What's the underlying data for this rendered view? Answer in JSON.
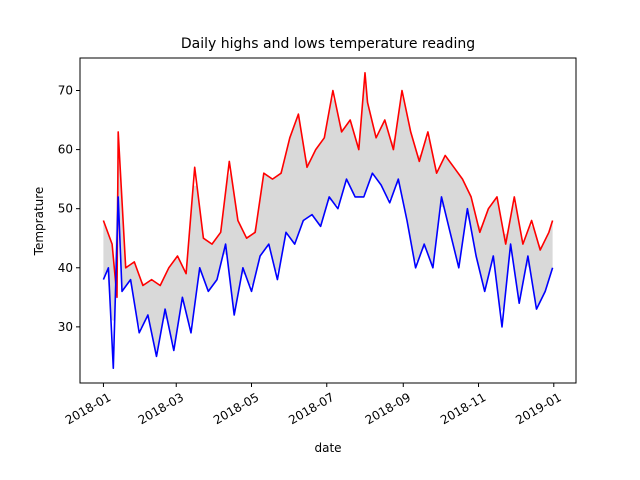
{
  "chart_data": {
    "type": "line",
    "title": "Daily highs and lows temperature reading",
    "xlabel": "date",
    "ylabel": "Temprature",
    "xlim": [
      "2017-12-13",
      "2019-01-19"
    ],
    "ylim": [
      20.5,
      75.5
    ],
    "x_ticks": [
      "2018-01",
      "2018-03",
      "2018-05",
      "2018-07",
      "2018-09",
      "2018-11",
      "2019-01"
    ],
    "x_tick_dates": [
      "2018-01-01",
      "2018-03-01",
      "2018-05-01",
      "2018-07-01",
      "2018-09-01",
      "2018-11-01",
      "2019-01-01"
    ],
    "y_ticks": [
      30,
      40,
      50,
      60,
      70
    ],
    "fill_between": {
      "color": "#d9d9d9"
    },
    "grid": false,
    "series": [
      {
        "color": "#ff0000",
        "x": [
          "2018-01-01",
          "2018-01-08",
          "2018-01-12",
          "2018-01-13",
          "2018-01-19",
          "2018-01-26",
          "2018-02-02",
          "2018-02-09",
          "2018-02-16",
          "2018-02-23",
          "2018-03-02",
          "2018-03-09",
          "2018-03-16",
          "2018-03-23",
          "2018-03-30",
          "2018-04-06",
          "2018-04-13",
          "2018-04-20",
          "2018-04-27",
          "2018-05-04",
          "2018-05-11",
          "2018-05-18",
          "2018-05-25",
          "2018-06-01",
          "2018-06-08",
          "2018-06-15",
          "2018-06-22",
          "2018-06-29",
          "2018-07-06",
          "2018-07-13",
          "2018-07-20",
          "2018-07-27",
          "2018-08-01",
          "2018-08-03",
          "2018-08-10",
          "2018-08-17",
          "2018-08-24",
          "2018-08-31",
          "2018-09-07",
          "2018-09-14",
          "2018-09-21",
          "2018-09-28",
          "2018-10-05",
          "2018-10-12",
          "2018-10-19",
          "2018-10-26",
          "2018-11-02",
          "2018-11-09",
          "2018-11-16",
          "2018-11-23",
          "2018-11-30",
          "2018-12-07",
          "2018-12-14",
          "2018-12-21",
          "2018-12-28",
          "2018-12-31"
        ],
        "values": [
          48,
          44,
          35,
          63,
          40,
          41,
          37,
          38,
          37,
          40,
          42,
          39,
          57,
          45,
          44,
          46,
          58,
          48,
          45,
          46,
          56,
          55,
          56,
          62,
          66,
          57,
          60,
          62,
          70,
          63,
          65,
          60,
          73,
          68,
          62,
          65,
          60,
          70,
          63,
          58,
          63,
          56,
          59,
          57,
          55,
          52,
          46,
          50,
          52,
          44,
          52,
          44,
          48,
          43,
          46,
          48
        ]
      },
      {
        "color": "#0000ff",
        "x": [
          "2018-01-01",
          "2018-01-05",
          "2018-01-09",
          "2018-01-13",
          "2018-01-16",
          "2018-01-23",
          "2018-01-30",
          "2018-02-06",
          "2018-02-13",
          "2018-02-20",
          "2018-02-27",
          "2018-03-06",
          "2018-03-13",
          "2018-03-20",
          "2018-03-27",
          "2018-04-03",
          "2018-04-10",
          "2018-04-17",
          "2018-04-24",
          "2018-05-01",
          "2018-05-08",
          "2018-05-15",
          "2018-05-22",
          "2018-05-29",
          "2018-06-05",
          "2018-06-12",
          "2018-06-19",
          "2018-06-26",
          "2018-07-03",
          "2018-07-10",
          "2018-07-17",
          "2018-07-24",
          "2018-07-31",
          "2018-08-07",
          "2018-08-14",
          "2018-08-21",
          "2018-08-28",
          "2018-09-04",
          "2018-09-11",
          "2018-09-18",
          "2018-09-25",
          "2018-10-02",
          "2018-10-09",
          "2018-10-16",
          "2018-10-23",
          "2018-10-30",
          "2018-11-06",
          "2018-11-13",
          "2018-11-20",
          "2018-11-27",
          "2018-12-04",
          "2018-12-11",
          "2018-12-18",
          "2018-12-25",
          "2018-12-31"
        ],
        "values": [
          38,
          40,
          23,
          52,
          36,
          38,
          29,
          32,
          25,
          33,
          26,
          35,
          29,
          40,
          36,
          38,
          44,
          32,
          40,
          36,
          42,
          44,
          38,
          46,
          44,
          48,
          49,
          47,
          52,
          50,
          55,
          52,
          52,
          56,
          54,
          51,
          55,
          48,
          40,
          44,
          40,
          52,
          46,
          40,
          50,
          42,
          36,
          42,
          30,
          44,
          34,
          42,
          33,
          36,
          40
        ]
      }
    ]
  }
}
